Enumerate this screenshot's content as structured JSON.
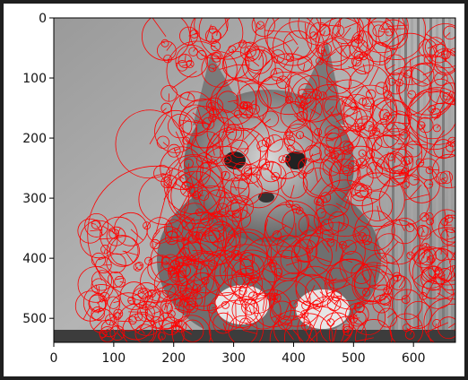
{
  "figure": {
    "background": "#ffffff",
    "frame_color": "#1f1f1f",
    "circle_color": "#ff0000",
    "x_ticks": [
      "0",
      "100",
      "200",
      "300",
      "400",
      "500",
      "600"
    ],
    "y_ticks": [
      "0",
      "100",
      "200",
      "300",
      "400",
      "500"
    ],
    "x_range": [
      0,
      670
    ],
    "y_range": [
      0,
      540
    ],
    "image_subject": "grayscale kitten photo with red keypoint circles"
  }
}
